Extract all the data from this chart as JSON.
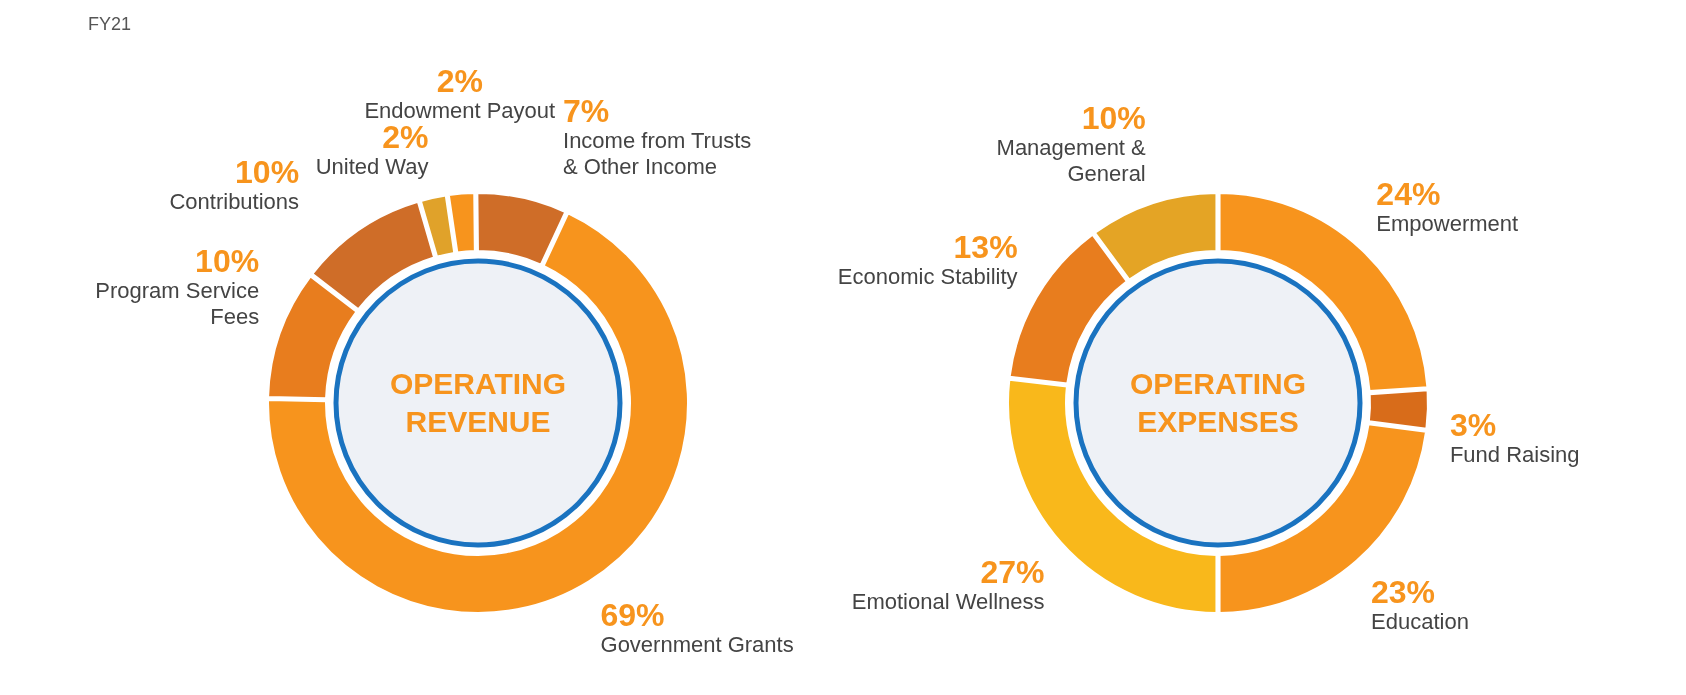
{
  "chart_data": [
    {
      "type": "donut",
      "title": "OPERATING REVENUE",
      "annotations": [
        "FY21"
      ],
      "categories": [
        "Government Grants",
        "Program Service Fees",
        "Contributions",
        "United Way",
        "Endowment Payout",
        "Income from Trusts & Other Income"
      ],
      "values": [
        69,
        10,
        10,
        2,
        2,
        7
      ],
      "colors": [
        "#f7941d",
        "#e87d1e",
        "#cf6d28",
        "#e0a22a",
        "#f7941d",
        "#cf6d28"
      ],
      "value_labels": [
        "69%",
        "10%",
        "10%",
        "2%",
        "2%",
        "7%"
      ]
    },
    {
      "type": "donut",
      "title": "OPERATING EXPENSES",
      "categories": [
        "Empowerment",
        "Fund Raising",
        "Education",
        "Emotional Wellness",
        "Economic Stability",
        "Management & General"
      ],
      "values": [
        24,
        3,
        23,
        27,
        13,
        10
      ],
      "colors": [
        "#f7941d",
        "#d86c1a",
        "#f7941d",
        "#f9b81b",
        "#e87d1e",
        "#e4a425"
      ],
      "value_labels": [
        "24%",
        "3%",
        "23%",
        "27%",
        "13%",
        "10%"
      ]
    }
  ]
}
